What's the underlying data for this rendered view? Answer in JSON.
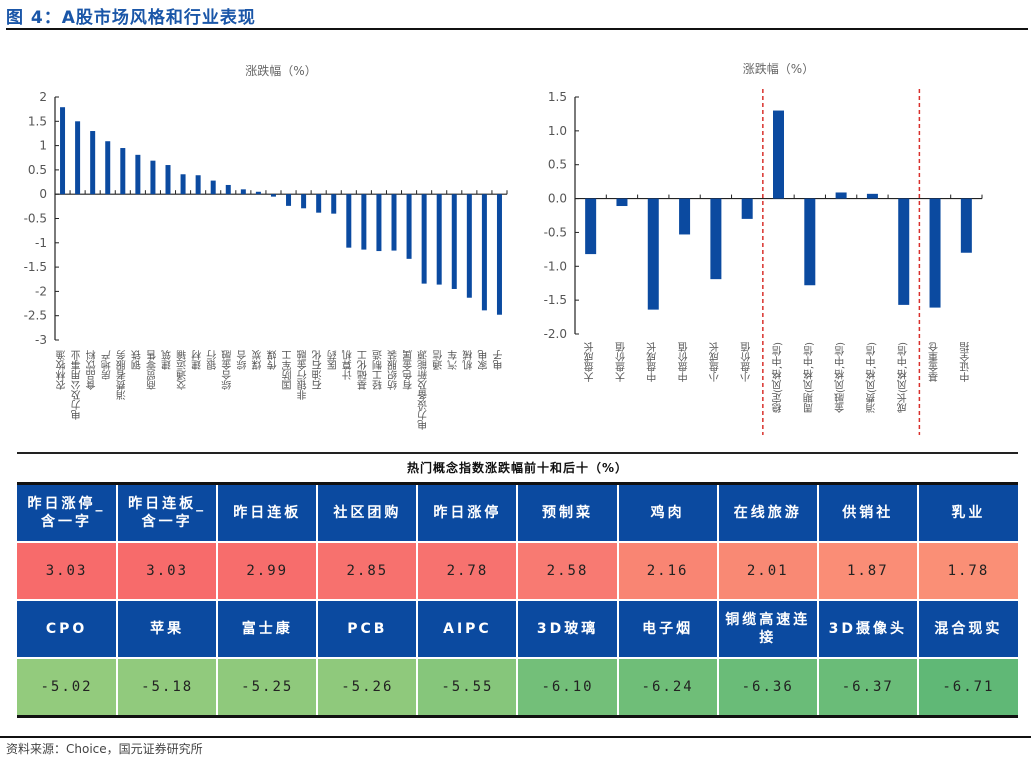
{
  "figure": {
    "title": "图 4：A股市场风格和行业表现",
    "source": "资料来源：Choice，国元证券研究所"
  },
  "chart_data": [
    {
      "type": "bar",
      "title": "涨跌幅（%）",
      "xlabel": "",
      "ylabel": "",
      "ylim": [
        -3,
        2
      ],
      "yticks": [
        -3,
        -2.5,
        -2,
        -1.5,
        -1,
        -0.5,
        0,
        0.5,
        1,
        1.5,
        2
      ],
      "ytick_labels": [
        "-3",
        "-2.5",
        "-2",
        "-1.5",
        "-1",
        "-0.5",
        "0",
        "0.5",
        "1",
        "1.5",
        "2"
      ],
      "bar_color": "#0b4aa0",
      "grid": false,
      "categories": [
        "农林牧渔",
        "电力及公用事业",
        "食品饮料",
        "房地产",
        "消费者服务",
        "钢铁",
        "商贸零售",
        "建筑",
        "交通运输",
        "建材",
        "银行",
        "综合金融",
        "综合",
        "煤炭",
        "传媒",
        "国防军工",
        "非银行金融",
        "石油石化",
        "医药",
        "计算机",
        "基础化工",
        "轻工制造",
        "纺织服装",
        "有色金属",
        "电力设备及新能源",
        "通信",
        "汽车",
        "机械",
        "家电",
        "电子"
      ],
      "values": [
        1.79,
        1.5,
        1.3,
        1.09,
        0.95,
        0.81,
        0.69,
        0.6,
        0.41,
        0.39,
        0.28,
        0.19,
        0.1,
        0.05,
        -0.05,
        -0.24,
        -0.29,
        -0.38,
        -0.4,
        -1.1,
        -1.14,
        -1.17,
        -1.16,
        -1.33,
        -1.84,
        -1.86,
        -1.95,
        -2.13,
        -2.39,
        -2.48
      ]
    },
    {
      "type": "bar",
      "title": "涨跌幅（%）",
      "xlabel": "",
      "ylabel": "",
      "ylim": [
        -2.0,
        1.5
      ],
      "yticks": [
        -2.0,
        -1.5,
        -1.0,
        -0.5,
        0.0,
        0.5,
        1.0,
        1.5
      ],
      "ytick_labels": [
        "-2.0",
        "-1.5",
        "-1.0",
        "-0.5",
        "0.0",
        "0.5",
        "1.0",
        "1.5"
      ],
      "bar_color": "#0b4aa0",
      "separator_color": "#d9302c",
      "separators_after_index": [
        5,
        10
      ],
      "grid": false,
      "categories": [
        "大盘成长",
        "大盘价值",
        "中盘成长",
        "中盘价值",
        "小盘成长",
        "小盘价值",
        "稳定(风格,中信)",
        "周期(风格,中信)",
        "金融(风格,中信)",
        "消费(风格,中信)",
        "成长(风格,中信)",
        "基金重仓",
        "中证全指"
      ],
      "values": [
        -0.82,
        -0.11,
        -1.64,
        -0.53,
        -1.19,
        -0.3,
        1.3,
        -1.28,
        0.09,
        0.07,
        -1.57,
        -1.61,
        -0.8
      ]
    }
  ],
  "table": {
    "title": "热门概念指数涨跌幅前十和后十（%）",
    "header_color": "#0b4aa0",
    "top": {
      "names": [
        "昨日涨停_含一字",
        "昨日连板_含一字",
        "昨日连板",
        "社区团购",
        "昨日涨停",
        "预制菜",
        "鸡肉",
        "在线旅游",
        "供销社",
        "乳业"
      ],
      "values": [
        "3.03",
        "3.03",
        "2.99",
        "2.85",
        "2.78",
        "2.58",
        "2.16",
        "2.01",
        "1.87",
        "1.78"
      ],
      "colors": [
        "#f76b6b",
        "#f76b6b",
        "#f76d6c",
        "#f7716e",
        "#f7726f",
        "#f87a72",
        "#f98573",
        "#f98974",
        "#fa8d76",
        "#fa8f76"
      ]
    },
    "bottom": {
      "names": [
        "CPO",
        "苹果",
        "富士康",
        "PCB",
        "AIPC",
        "3D玻璃",
        "电子烟",
        "铜缆高速连接",
        "3D摄像头",
        "混合现实"
      ],
      "values": [
        "-5.02",
        "-5.18",
        "-5.25",
        "-5.26",
        "-5.55",
        "-6.10",
        "-6.24",
        "-6.36",
        "-6.37",
        "-6.71"
      ],
      "colors": [
        "#93cb7d",
        "#91ca7d",
        "#8fc97c",
        "#8fc97c",
        "#86c67b",
        "#73bf79",
        "#6fbe78",
        "#6abc78",
        "#6abc78",
        "#60b876"
      ]
    }
  }
}
